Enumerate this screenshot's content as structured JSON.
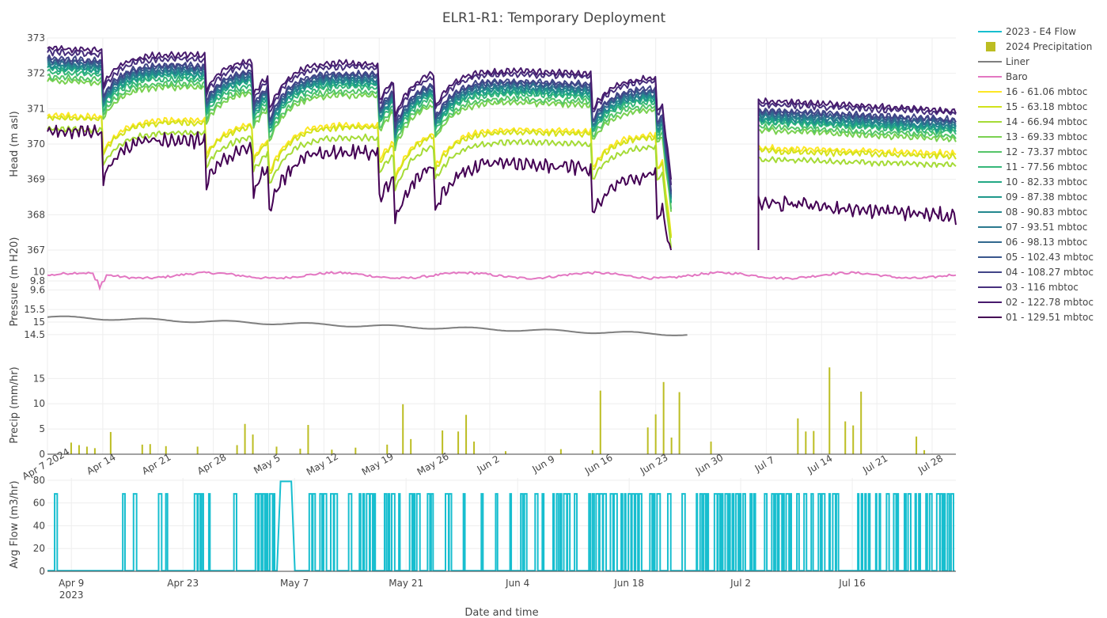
{
  "chart_data": {
    "type": "line",
    "title": "ELR1-R1: Temporary Deployment",
    "xlabel": "Date and time",
    "colors": {
      "flow": "#17becf",
      "precip": "#bcbd22",
      "liner": "#7f7f7f",
      "baro": "#e377c2"
    },
    "legend": {
      "position": "right",
      "entries": [
        "2023 - E4 Flow",
        "2024 Precipitation",
        "Liner",
        "Baro",
        "16 - 61.06 mbtoc",
        "15 - 63.18 mbtoc",
        "14 - 66.94 mbtoc",
        "13 - 69.33 mbtoc",
        "12 - 73.37 mbtoc",
        "11 - 77.56 mbtoc",
        "10 - 82.33 mbtoc",
        "09 - 87.38 mbtoc",
        "08 - 90.83 mbtoc",
        "07 - 93.51 mbtoc",
        "06 - 98.13 mbtoc",
        "05 - 102.43 mbtoc",
        "04 - 108.27 mbtoc",
        "03 - 116 mbtoc",
        "02 - 122.78 mbtoc",
        "01 - 129.51 mbtoc"
      ]
    },
    "x_2024": {
      "range": [
        "2024-04-07",
        "2024-07-31"
      ],
      "tick_labels": [
        "Apr 7\n2024",
        "Apr 14",
        "Apr 21",
        "Apr 28",
        "May 5",
        "May 12",
        "May 19",
        "May 26",
        "Jun 2",
        "Jun 9",
        "Jun 16",
        "Jun 23",
        "Jun 30",
        "Jul 7",
        "Jul 14",
        "Jul 21",
        "Jul 28"
      ],
      "tick_dates": [
        "2024-04-07",
        "2024-04-14",
        "2024-04-21",
        "2024-04-28",
        "2024-05-05",
        "2024-05-12",
        "2024-05-19",
        "2024-05-26",
        "2024-06-02",
        "2024-06-09",
        "2024-06-16",
        "2024-06-23",
        "2024-06-30",
        "2024-07-07",
        "2024-07-14",
        "2024-07-21",
        "2024-07-28"
      ],
      "data_gap": [
        "2024-06-25",
        "2024-07-06"
      ]
    },
    "x_2023": {
      "range": [
        "2023-04-06",
        "2023-07-29"
      ],
      "tick_labels": [
        "Apr 9\n2023",
        "Apr 23",
        "May 7",
        "May 21",
        "Jun 4",
        "Jun 18",
        "Jul 2",
        "Jul 16"
      ],
      "tick_dates": [
        "2023-04-09",
        "2023-04-23",
        "2023-05-07",
        "2023-05-21",
        "2023-06-04",
        "2023-06-18",
        "2023-07-02",
        "2023-07-16"
      ]
    },
    "panels": [
      {
        "id": "head",
        "ylabel": "Head (m asl)",
        "ylim": [
          367,
          373
        ],
        "ticks": [
          "367",
          "368",
          "369",
          "370",
          "371",
          "372",
          "373"
        ],
        "grid": true,
        "series": [
          {
            "name": "16 - 61.06 mbtoc",
            "color": "#fde725",
            "approx_start": 370.6,
            "approx_peak": 370.95,
            "approx_end": 369.7
          },
          {
            "name": "15 - 63.18 mbtoc",
            "color": "#d2e21b",
            "approx_start": 370.5,
            "approx_peak": 370.9,
            "approx_end": 369.6
          },
          {
            "name": "14 - 66.94 mbtoc",
            "color": "#a5db36",
            "approx_start": 370.2,
            "approx_peak": 370.6,
            "approx_end": 369.35
          },
          {
            "name": "13 - 69.33 mbtoc",
            "color": "#7ad151",
            "approx_start": 371.5,
            "approx_peak": 372.0,
            "approx_end": 370.1
          },
          {
            "name": "12 - 73.37 mbtoc",
            "color": "#54c568",
            "approx_start": 371.6,
            "approx_peak": 372.1,
            "approx_end": 370.2
          },
          {
            "name": "11 - 77.56 mbtoc",
            "color": "#35b779",
            "approx_start": 371.7,
            "approx_peak": 372.25,
            "approx_end": 370.3
          },
          {
            "name": "10 - 82.33 mbtoc",
            "color": "#22a884",
            "approx_start": 371.8,
            "approx_peak": 372.35,
            "approx_end": 370.35
          },
          {
            "name": "09 - 87.38 mbtoc",
            "color": "#1f988b",
            "approx_start": 371.85,
            "approx_peak": 372.4,
            "approx_end": 370.4
          },
          {
            "name": "08 - 90.83 mbtoc",
            "color": "#23888e",
            "approx_start": 371.9,
            "approx_peak": 372.45,
            "approx_end": 370.45
          },
          {
            "name": "07 - 93.51 mbtoc",
            "color": "#2a788e",
            "approx_start": 371.95,
            "approx_peak": 372.5,
            "approx_end": 370.5
          },
          {
            "name": "06 - 98.13 mbtoc",
            "color": "#31688e",
            "approx_start": 372.0,
            "approx_peak": 372.55,
            "approx_end": 370.55
          },
          {
            "name": "05 - 102.43 mbtoc",
            "color": "#39568c",
            "approx_start": 372.05,
            "approx_peak": 372.6,
            "approx_end": 370.6
          },
          {
            "name": "04 - 108.27 mbtoc",
            "color": "#414487",
            "approx_start": 372.1,
            "approx_peak": 372.65,
            "approx_end": 370.65
          },
          {
            "name": "03 - 116 mbtoc",
            "color": "#472f7d",
            "approx_start": 372.15,
            "approx_peak": 372.9,
            "approx_end": 370.75
          },
          {
            "name": "02 - 122.78 mbtoc",
            "color": "#471a6c",
            "approx_start": 372.3,
            "approx_peak": 373.0,
            "approx_end": 370.85
          },
          {
            "name": "01 - 129.51 mbtoc",
            "color": "#440154",
            "approx_start": 370.3,
            "approx_peak": 370.5,
            "approx_end": 368.1
          }
        ]
      },
      {
        "id": "pressure",
        "ylabel": "Pressure (m H20)",
        "baro": {
          "ylim": [
            9.5,
            10.1
          ],
          "ticks": [
            "9.6",
            "9.8",
            "10"
          ],
          "approx_mean": 9.92,
          "approx_min": 9.58
        },
        "liner": {
          "ylim": [
            14.4,
            15.6
          ],
          "ticks": [
            "14.5",
            "15",
            "15.5"
          ],
          "approx_start": 15.2,
          "approx_end": 14.5
        }
      },
      {
        "id": "precip",
        "ylabel": "Precip (mm/hr)",
        "ylim": [
          0,
          18.5
        ],
        "ticks": [
          "0",
          "5",
          "10",
          "15"
        ],
        "events": [
          {
            "date": "2024-04-10",
            "value": 2.3
          },
          {
            "date": "2024-04-11",
            "value": 1.8
          },
          {
            "date": "2024-04-12",
            "value": 1.5
          },
          {
            "date": "2024-04-13",
            "value": 1.2
          },
          {
            "date": "2024-04-15",
            "value": 4.4
          },
          {
            "date": "2024-04-19",
            "value": 1.9
          },
          {
            "date": "2024-04-20",
            "value": 2.0
          },
          {
            "date": "2024-04-22",
            "value": 1.6
          },
          {
            "date": "2024-04-26",
            "value": 1.5
          },
          {
            "date": "2024-05-01",
            "value": 1.8
          },
          {
            "date": "2024-05-02",
            "value": 6.0
          },
          {
            "date": "2024-05-03",
            "value": 3.9
          },
          {
            "date": "2024-05-06",
            "value": 1.5
          },
          {
            "date": "2024-05-09",
            "value": 1.1
          },
          {
            "date": "2024-05-10",
            "value": 5.8
          },
          {
            "date": "2024-05-13",
            "value": 0.9
          },
          {
            "date": "2024-05-16",
            "value": 1.3
          },
          {
            "date": "2024-05-20",
            "value": 1.9
          },
          {
            "date": "2024-05-22",
            "value": 9.9
          },
          {
            "date": "2024-05-23",
            "value": 3.0
          },
          {
            "date": "2024-05-27",
            "value": 4.7
          },
          {
            "date": "2024-05-29",
            "value": 4.5
          },
          {
            "date": "2024-05-30",
            "value": 7.8
          },
          {
            "date": "2024-05-31",
            "value": 2.5
          },
          {
            "date": "2024-06-04",
            "value": 0.6
          },
          {
            "date": "2024-06-11",
            "value": 1.0
          },
          {
            "date": "2024-06-15",
            "value": 0.8
          },
          {
            "date": "2024-06-16",
            "value": 12.6
          },
          {
            "date": "2024-06-22",
            "value": 5.3
          },
          {
            "date": "2024-06-23",
            "value": 7.9
          },
          {
            "date": "2024-06-24",
            "value": 14.3
          },
          {
            "date": "2024-06-25",
            "value": 3.3
          },
          {
            "date": "2024-06-26",
            "value": 12.3
          },
          {
            "date": "2024-06-30",
            "value": 2.5
          },
          {
            "date": "2024-07-11",
            "value": 7.1
          },
          {
            "date": "2024-07-12",
            "value": 4.5
          },
          {
            "date": "2024-07-13",
            "value": 4.6
          },
          {
            "date": "2024-07-15",
            "value": 17.2
          },
          {
            "date": "2024-07-17",
            "value": 6.5
          },
          {
            "date": "2024-07-18",
            "value": 5.7
          },
          {
            "date": "2024-07-19",
            "value": 12.4
          },
          {
            "date": "2024-07-26",
            "value": 3.5
          },
          {
            "date": "2024-07-27",
            "value": 0.8
          }
        ]
      },
      {
        "id": "flow",
        "ylabel": "Avg Flow (m3/hr)",
        "ylim": [
          0,
          82
        ],
        "ticks": [
          "0",
          "20",
          "40",
          "60",
          "80"
        ],
        "series_name": "2023 - E4 Flow",
        "baseline": 0.5,
        "pump_on_value": 68,
        "high_value": 79,
        "high_period": [
          "2023-05-05",
          "2023-05-07"
        ]
      }
    ]
  }
}
